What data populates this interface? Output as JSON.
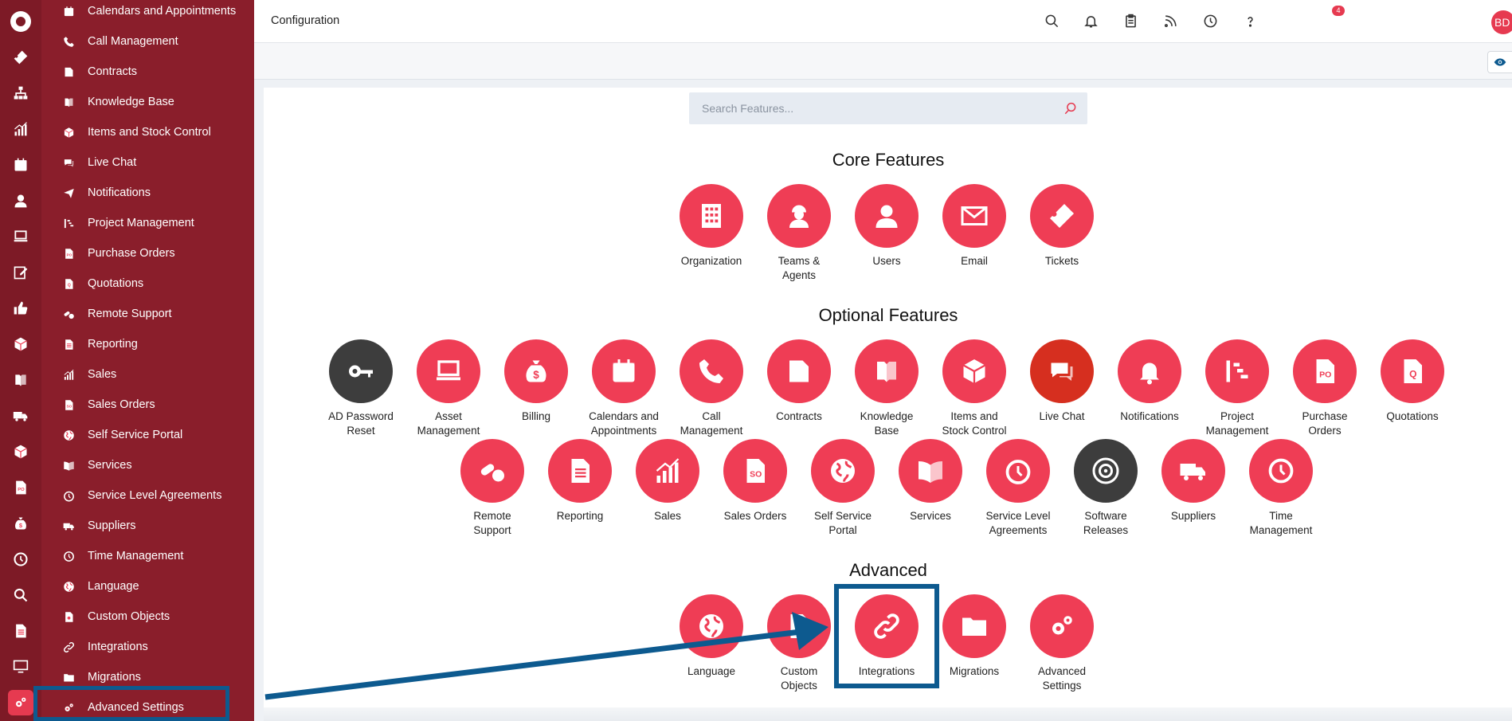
{
  "header": {
    "title": "Configuration",
    "notification_count": "4",
    "avatar_initials": "BD",
    "icons": [
      "search-icon",
      "bell-icon",
      "clipboard-icon",
      "rss-icon",
      "clock-icon",
      "help-icon"
    ]
  },
  "search": {
    "placeholder": "Search Features..."
  },
  "sidebar": {
    "items": [
      {
        "label": "Calendars and Appointments",
        "icon": "calendar-icon"
      },
      {
        "label": "Call Management",
        "icon": "phone-icon"
      },
      {
        "label": "Contracts",
        "icon": "contract-icon"
      },
      {
        "label": "Knowledge Base",
        "icon": "book-icon"
      },
      {
        "label": "Items and Stock Control",
        "icon": "box-icon"
      },
      {
        "label": "Live Chat",
        "icon": "chat-icon"
      },
      {
        "label": "Notifications",
        "icon": "paper-plane-icon"
      },
      {
        "label": "Project Management",
        "icon": "gantt-icon"
      },
      {
        "label": "Purchase Orders",
        "icon": "po-document-icon"
      },
      {
        "label": "Quotations",
        "icon": "quote-document-icon"
      },
      {
        "label": "Remote Support",
        "icon": "pills-icon"
      },
      {
        "label": "Reporting",
        "icon": "report-icon"
      },
      {
        "label": "Sales",
        "icon": "chart-icon"
      },
      {
        "label": "Sales Orders",
        "icon": "so-document-icon"
      },
      {
        "label": "Self Service Portal",
        "icon": "globe-icon"
      },
      {
        "label": "Services",
        "icon": "open-book-icon"
      },
      {
        "label": "Service Level Agreements",
        "icon": "timer-icon"
      },
      {
        "label": "Suppliers",
        "icon": "truck-icon"
      },
      {
        "label": "Time Management",
        "icon": "clock-icon"
      },
      {
        "label": "Language",
        "icon": "globe-icon"
      },
      {
        "label": "Custom Objects",
        "icon": "custom-object-icon"
      },
      {
        "label": "Integrations",
        "icon": "link-icon"
      },
      {
        "label": "Migrations",
        "icon": "folder-icon"
      },
      {
        "label": "Advanced Settings",
        "icon": "gears-icon"
      }
    ]
  },
  "rail": {
    "icons": [
      "logo-icon",
      "ticket-icon",
      "org-chart-icon",
      "chart-icon",
      "calendar-icon",
      "user-icon",
      "laptop-icon",
      "edit-icon",
      "thumbs-up-icon",
      "box-icon",
      "book-icon",
      "truck-icon",
      "box-icon",
      "po-document-icon",
      "money-bag-icon",
      "clock-icon",
      "search-icon",
      "report-icon",
      "monitor-icon",
      "gears-icon"
    ]
  },
  "sections": {
    "core": {
      "title": "Core Features",
      "features": [
        {
          "l1": "Organization",
          "l2": "",
          "icon": "building-icon"
        },
        {
          "l1": "Teams &",
          "l2": "Agents",
          "icon": "worker-icon"
        },
        {
          "l1": "Users",
          "l2": "",
          "icon": "user-icon"
        },
        {
          "l1": "Email",
          "l2": "",
          "icon": "envelope-icon"
        },
        {
          "l1": "Tickets",
          "l2": "",
          "icon": "ticket-icon"
        }
      ]
    },
    "optional": {
      "title": "Optional Features",
      "row1": [
        {
          "l1": "AD Password",
          "l2": "Reset",
          "icon": "key-icon"
        },
        {
          "l1": "Asset",
          "l2": "Management",
          "icon": "laptop-icon"
        },
        {
          "l1": "Billing",
          "l2": "",
          "icon": "money-bag-icon"
        },
        {
          "l1": "Calendars and",
          "l2": "Appointments",
          "icon": "calendar-icon"
        },
        {
          "l1": "Call",
          "l2": "Management",
          "icon": "phone-icon"
        },
        {
          "l1": "Contracts",
          "l2": "",
          "icon": "contract-icon"
        },
        {
          "l1": "Knowledge",
          "l2": "Base",
          "icon": "book-icon"
        },
        {
          "l1": "Items and",
          "l2": "Stock Control",
          "icon": "box-icon"
        },
        {
          "l1": "Live Chat",
          "l2": "",
          "icon": "chat-icon"
        },
        {
          "l1": "Notifications",
          "l2": "",
          "icon": "bell-icon"
        },
        {
          "l1": "Project",
          "l2": "Management",
          "icon": "gantt-icon"
        },
        {
          "l1": "Purchase",
          "l2": "Orders",
          "icon": "po-document-icon"
        },
        {
          "l1": "Quotations",
          "l2": "",
          "icon": "quote-document-icon"
        }
      ],
      "row2": [
        {
          "l1": "Remote",
          "l2": "Support",
          "icon": "pills-icon"
        },
        {
          "l1": "Reporting",
          "l2": "",
          "icon": "report-icon"
        },
        {
          "l1": "Sales",
          "l2": "",
          "icon": "chart-icon"
        },
        {
          "l1": "Sales Orders",
          "l2": "",
          "icon": "so-document-icon"
        },
        {
          "l1": "Self Service",
          "l2": "Portal",
          "icon": "globe-icon"
        },
        {
          "l1": "Services",
          "l2": "",
          "icon": "open-book-icon"
        },
        {
          "l1": "Service Level",
          "l2": "Agreements",
          "icon": "timer-icon"
        },
        {
          "l1": "Software",
          "l2": "Releases",
          "icon": "disc-icon"
        },
        {
          "l1": "Suppliers",
          "l2": "",
          "icon": "truck-icon"
        },
        {
          "l1": "Time",
          "l2": "Management",
          "icon": "clock-icon"
        }
      ]
    },
    "advanced": {
      "title": "Advanced",
      "features": [
        {
          "l1": "Language",
          "l2": "",
          "icon": "globe-icon"
        },
        {
          "l1": "Custom",
          "l2": "Objects",
          "icon": "custom-object-icon"
        },
        {
          "l1": "Integrations",
          "l2": "",
          "icon": "link-icon"
        },
        {
          "l1": "Migrations",
          "l2": "",
          "icon": "folder-icon"
        },
        {
          "l1": "Advanced",
          "l2": "Settings",
          "icon": "gears-icon"
        }
      ]
    }
  },
  "colors": {
    "rail": "#7d1a26",
    "sidebar": "#8a1e2b",
    "feature_accent": "#ef3d55",
    "feature_dark": "#3d3d3d",
    "annotation": "#0d5a8f"
  }
}
